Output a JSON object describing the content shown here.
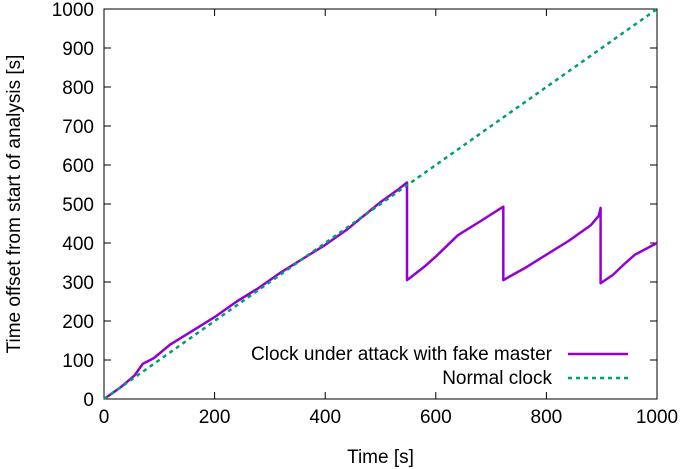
{
  "chart_data": {
    "type": "line",
    "title": "",
    "xlabel": "Time [s]",
    "ylabel": "Time offset from start of analysis [s]",
    "xlim": [
      0,
      1000
    ],
    "ylim": [
      0,
      1000
    ],
    "xticks": [
      0,
      200,
      400,
      600,
      800,
      1000
    ],
    "yticks": [
      0,
      100,
      200,
      300,
      400,
      500,
      600,
      700,
      800,
      900,
      1000
    ],
    "grid": false,
    "legend_position": "bottom-right",
    "series": [
      {
        "name": "Clock under attack with fake master",
        "color": "#9400d3",
        "style": "solid",
        "x": [
          0,
          30,
          55,
          70,
          90,
          120,
          160,
          200,
          240,
          280,
          320,
          360,
          400,
          440,
          470,
          500,
          530,
          548,
          548,
          560,
          580,
          600,
          640,
          680,
          722,
          722,
          760,
          800,
          840,
          880,
          895,
          898,
          898,
          920,
          940,
          960,
          1000
        ],
        "y": [
          0,
          30,
          60,
          90,
          105,
          140,
          175,
          210,
          250,
          285,
          325,
          360,
          395,
          435,
          470,
          505,
          535,
          555,
          305,
          318,
          340,
          365,
          420,
          455,
          493,
          305,
          335,
          370,
          405,
          445,
          470,
          490,
          297,
          318,
          345,
          370,
          400
        ]
      },
      {
        "name": "Normal clock",
        "color": "#009e73",
        "style": "dashed",
        "x": [
          0,
          1000
        ],
        "y": [
          0,
          1000
        ]
      }
    ]
  }
}
